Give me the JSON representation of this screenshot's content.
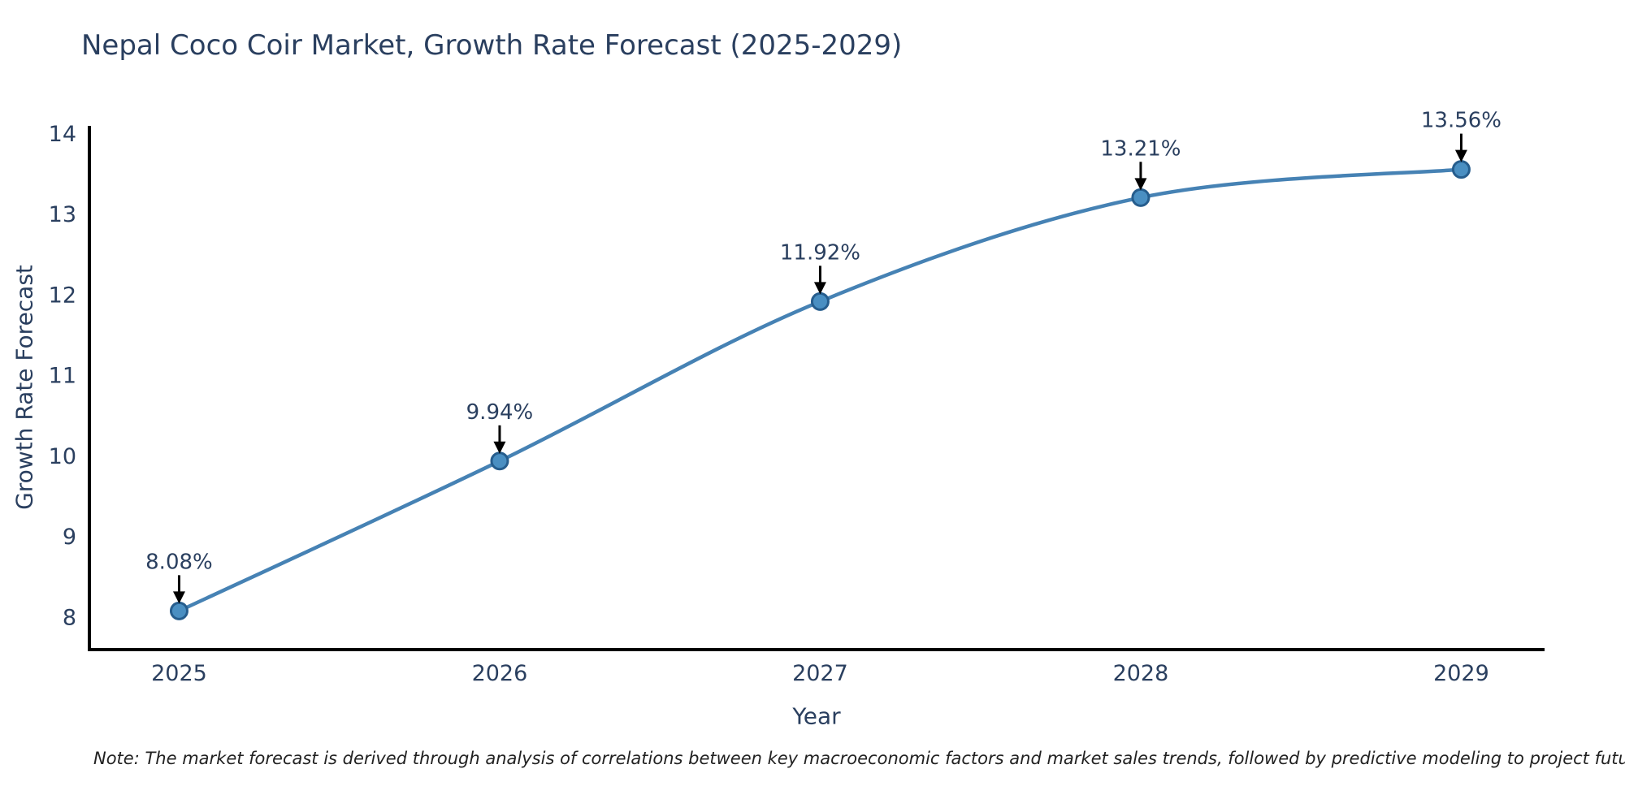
{
  "chart_data": {
    "type": "line",
    "title": "Nepal Coco Coir Market, Growth Rate Forecast (2025-2029)",
    "xlabel": "Year",
    "ylabel": "Growth Rate Forecast",
    "note": "Note: The market forecast is derived through analysis of correlations between key macroeconomic factors and market sales trends, followed by predictive modeling to project future sales",
    "x": [
      2025,
      2026,
      2027,
      2028,
      2029
    ],
    "y": [
      8.08,
      9.94,
      11.92,
      13.21,
      13.56
    ],
    "point_labels": [
      "8.08%",
      "9.94%",
      "11.92%",
      "13.21%",
      "13.56%"
    ],
    "x_tick_labels": [
      "2025",
      "2026",
      "2027",
      "2028",
      "2029"
    ],
    "y_tick_values": [
      8,
      9,
      10,
      11,
      12,
      13,
      14
    ],
    "xlim": [
      2024.72,
      2029.26
    ],
    "ylim": [
      7.6,
      14.1
    ],
    "grid": false,
    "legend": "none",
    "line_shape": "spline",
    "colors": {
      "line": "#4682b4",
      "marker_fill": "#4a8fc2",
      "marker_stroke": "#265d8d",
      "axis": "#000000",
      "tick_text": "#2a3f5f",
      "annotation_text": "#2a3f5f",
      "annotation_arrow": "#000000",
      "background": "#ffffff"
    }
  }
}
